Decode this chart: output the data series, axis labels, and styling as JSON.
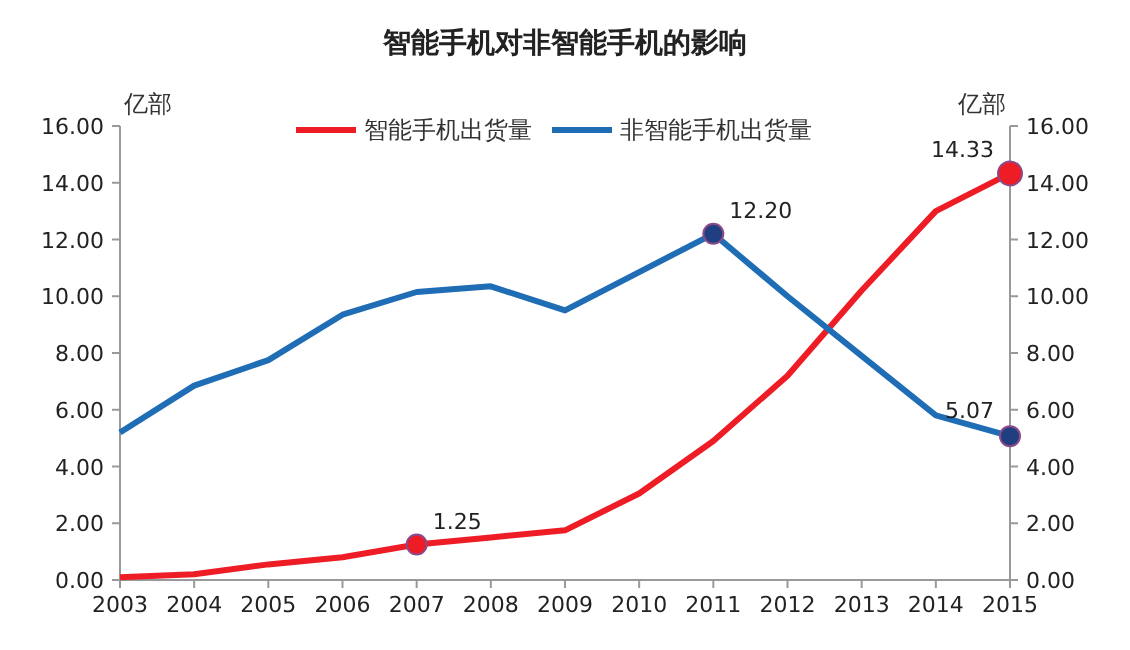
{
  "chart_data": {
    "type": "line",
    "title": "智能手机对非智能手机的影响",
    "ylabel": "亿部",
    "y2label": "亿部",
    "categories": [
      "2003",
      "2004",
      "2005",
      "2006",
      "2007",
      "2008",
      "2009",
      "2010",
      "2011",
      "2012",
      "2013",
      "2014",
      "2015"
    ],
    "series": [
      {
        "name": "智能手机出货量",
        "color": "#ee1c25",
        "values": [
          0.1,
          0.2,
          0.55,
          0.8,
          1.25,
          1.5,
          1.75,
          3.05,
          4.9,
          7.2,
          10.2,
          13.0,
          14.33
        ],
        "value_labels": [
          null,
          null,
          null,
          null,
          "1.25",
          null,
          null,
          null,
          null,
          null,
          null,
          null,
          "14.33"
        ]
      },
      {
        "name": "非智能手机出货量",
        "color": "#1f6db5",
        "values": [
          5.2,
          6.85,
          7.75,
          9.35,
          10.15,
          10.35,
          9.5,
          10.85,
          12.2,
          10.0,
          7.9,
          5.8,
          5.07
        ],
        "value_labels": [
          null,
          null,
          null,
          null,
          null,
          null,
          null,
          null,
          "12.20",
          null,
          null,
          null,
          "5.07"
        ]
      }
    ],
    "ylim": [
      0,
      16
    ],
    "yticks": [
      {
        "value": 0,
        "label": "0.00"
      },
      {
        "value": 2,
        "label": "2.00"
      },
      {
        "value": 4,
        "label": "4.00"
      },
      {
        "value": 6,
        "label": "6.00"
      },
      {
        "value": 8,
        "label": "8.00"
      },
      {
        "value": 10,
        "label": "10.00"
      },
      {
        "value": 12,
        "label": "12.00"
      },
      {
        "value": 14,
        "label": "14.00"
      },
      {
        "value": 16,
        "label": "16.00"
      }
    ],
    "y2lim": [
      0,
      16
    ],
    "y2ticks": [
      {
        "value": 0,
        "label": "0.00"
      },
      {
        "value": 2,
        "label": "2.00"
      },
      {
        "value": 4,
        "label": "4.00"
      },
      {
        "value": 6,
        "label": "6.00"
      },
      {
        "value": 8,
        "label": "8.00"
      },
      {
        "value": 10,
        "label": "10.00"
      },
      {
        "value": 12,
        "label": "12.00"
      },
      {
        "value": 14,
        "label": "14.00"
      },
      {
        "value": 16,
        "label": "16.00"
      }
    ],
    "legend": "top",
    "grid": false,
    "line_style": "solid"
  }
}
